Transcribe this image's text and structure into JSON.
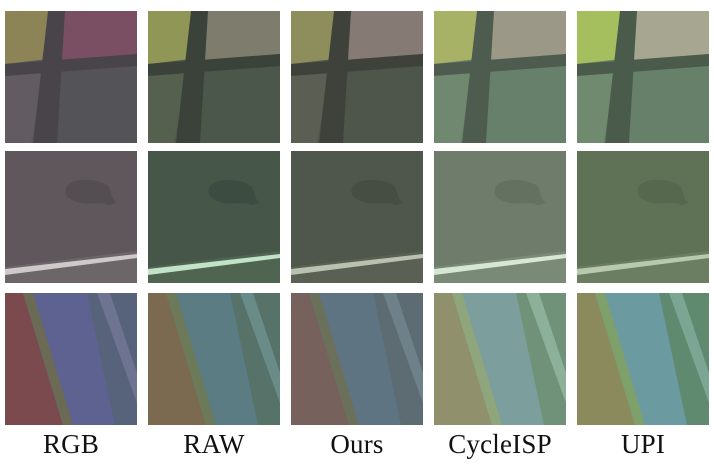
{
  "figure": {
    "columns": [
      {
        "label": "RGB"
      },
      {
        "label": "RAW"
      },
      {
        "label": "Ours"
      },
      {
        "label": "CycleISP"
      },
      {
        "label": "UPI"
      }
    ],
    "rows": [
      {
        "content": "color-checker-crop"
      },
      {
        "content": "flat-surface-with-dark-blob"
      },
      {
        "content": "diagonal-color-bands"
      }
    ],
    "colors": {
      "background": "#ffffff",
      "label_text": "#111111",
      "rgb_patch_grey": "#5e5860",
      "raw_patch_green": "#4f5a4e",
      "cycleisp_patch": "#6f8570",
      "upi_patch": "#6d8a6c"
    }
  }
}
